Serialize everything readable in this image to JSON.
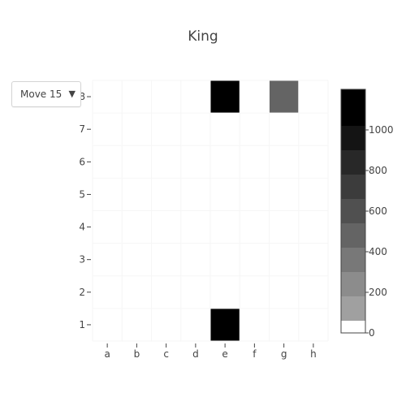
{
  "chart_data": {
    "type": "heatmap",
    "title": "King",
    "x": [
      "a",
      "b",
      "c",
      "d",
      "e",
      "f",
      "g",
      "h"
    ],
    "y": [
      "1",
      "2",
      "3",
      "4",
      "5",
      "6",
      "7",
      "8"
    ],
    "z": [
      [
        0,
        0,
        0,
        0,
        1200,
        0,
        0,
        0
      ],
      [
        0,
        0,
        0,
        0,
        0,
        0,
        0,
        0
      ],
      [
        0,
        0,
        0,
        0,
        0,
        0,
        0,
        0
      ],
      [
        0,
        0,
        0,
        0,
        0,
        0,
        0,
        0
      ],
      [
        0,
        0,
        0,
        0,
        0,
        0,
        0,
        0
      ],
      [
        0,
        0,
        0,
        0,
        0,
        0,
        0,
        0
      ],
      [
        0,
        0,
        0,
        0,
        0,
        0,
        0,
        0
      ],
      [
        0,
        0,
        0,
        0,
        1200,
        0,
        540,
        0
      ]
    ],
    "colorbar": {
      "range": [
        0,
        1200
      ],
      "tickvals": [
        0,
        200,
        400,
        600,
        800,
        1000
      ],
      "ticktext": [
        "0",
        "200",
        "400",
        "600",
        "800",
        "1000"
      ],
      "bands": [
        {
          "from": 0,
          "to": 60,
          "color": "#ffffff"
        },
        {
          "from": 60,
          "to": 180,
          "color": "#a0a0a0"
        },
        {
          "from": 180,
          "to": 300,
          "color": "#8c8c8c"
        },
        {
          "from": 300,
          "to": 420,
          "color": "#787878"
        },
        {
          "from": 420,
          "to": 540,
          "color": "#646464"
        },
        {
          "from": 540,
          "to": 660,
          "color": "#505050"
        },
        {
          "from": 660,
          "to": 780,
          "color": "#3c3c3c"
        },
        {
          "from": 780,
          "to": 900,
          "color": "#282828"
        },
        {
          "from": 900,
          "to": 1020,
          "color": "#141414"
        },
        {
          "from": 1020,
          "to": 1200,
          "color": "#000000"
        }
      ]
    }
  },
  "dropdown": {
    "selected": "Move 15",
    "arrow": "▼"
  }
}
